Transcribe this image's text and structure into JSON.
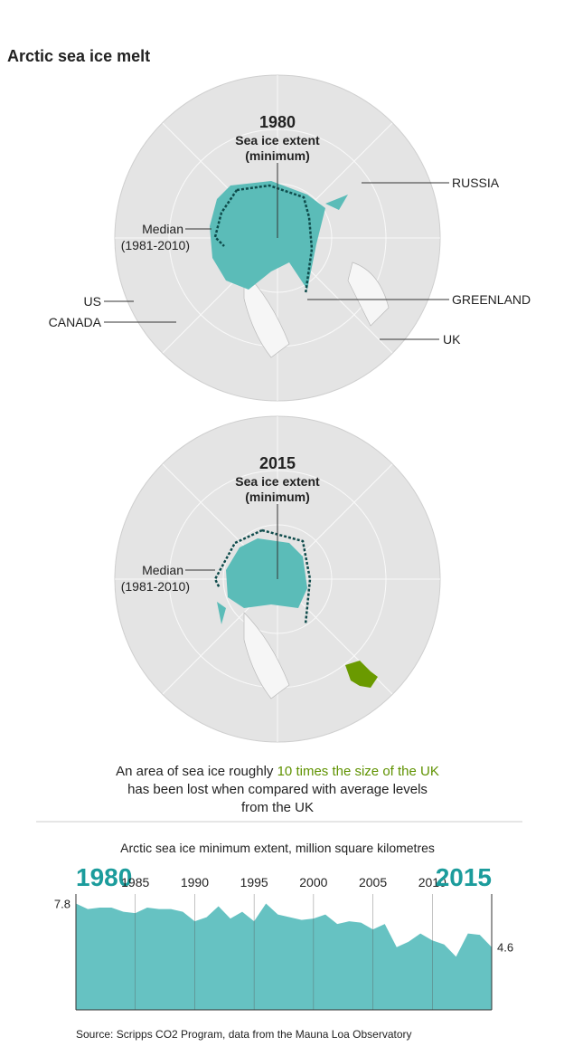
{
  "title": "Arctic sea ice melt",
  "maps": [
    {
      "year": "1980",
      "label": "Sea ice extent",
      "label2": "(minimum)",
      "median": "Median",
      "median_period": "(1981-2010)",
      "places": [
        "RUSSIA",
        "GREENLAND",
        "UK",
        "US",
        "CANADA"
      ]
    },
    {
      "year": "2015",
      "label": "Sea ice extent",
      "label2": "(minimum)",
      "median": "Median",
      "median_period": "(1981-2010)"
    }
  ],
  "note": {
    "before": "An area of sea ice roughly",
    "highlight": "10 times the size of the UK",
    "line2": "has been lost when compared with average levels",
    "line3": "from the UK"
  },
  "chart_data": {
    "type": "area",
    "title": "Arctic sea ice minimum extent, million square kilometres",
    "x": [
      1980,
      1981,
      1982,
      1983,
      1984,
      1985,
      1986,
      1987,
      1988,
      1989,
      1990,
      1991,
      1992,
      1993,
      1994,
      1995,
      1996,
      1997,
      1998,
      1999,
      2000,
      2001,
      2002,
      2003,
      2004,
      2005,
      2006,
      2007,
      2008,
      2009,
      2010,
      2011,
      2012,
      2013,
      2014,
      2015
    ],
    "values": [
      7.8,
      7.4,
      7.5,
      7.5,
      7.2,
      7.1,
      7.5,
      7.4,
      7.4,
      7.2,
      6.5,
      6.8,
      7.6,
      6.7,
      7.2,
      6.5,
      7.8,
      7.0,
      6.8,
      6.6,
      6.7,
      7.0,
      6.3,
      6.5,
      6.4,
      5.9,
      6.3,
      4.6,
      5.0,
      5.6,
      5.1,
      4.8,
      3.9,
      5.6,
      5.5,
      4.6
    ],
    "color": "#66c2c2",
    "xlim": [
      1980,
      2015
    ],
    "xticks": [
      1980,
      1985,
      1990,
      1995,
      2000,
      2005,
      2010,
      2015
    ],
    "ylim": [
      0,
      8.5
    ],
    "grid": true
  },
  "source": "Source: Scripps CO2 Program, data from the Mauna Loa Observatory"
}
